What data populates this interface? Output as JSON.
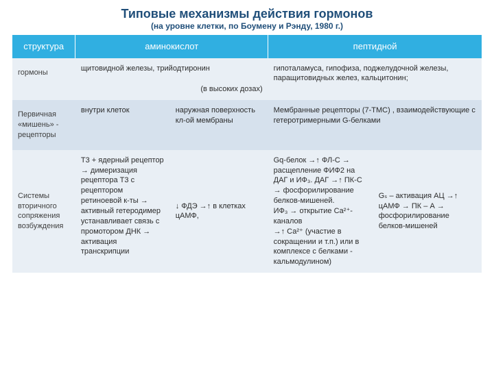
{
  "title": "Типовые механизмы действия гормонов",
  "subtitle": "(на уровне клетки, по Боумену и Рэнду, 1980 г.)",
  "header": {
    "c0": "структура",
    "c1": "аминокислот",
    "c2": "пептидной"
  },
  "row1": {
    "label": "гормоны",
    "c1": "щитовидной железы, трийодтиронин",
    "c2": "(в высоких дозах)",
    "c3": "гипоталамуса, гипофиза, поджелудочной железы, паращитовидных желез, кальцитонин;"
  },
  "row2": {
    "label": "Первичная «мишень» - рецепторы",
    "c1": "внутри клеток",
    "c2": "наружная поверхность кл-ой мембраны",
    "c3": "Мембранные рецепторы  (7-ТМС) , взаимодействующие с гетеротримерными  G-белками"
  },
  "row3": {
    "label": "Системы вторичного сопряжения возбуждения",
    "c1": "Т3 + ядерный рецептор\n→ димеризация рецептора Т3 с рецептором ретиноевой к-ты → активный гетеродимер устанавливает связь с промотором ДНК → активация транскрипции",
    "c2": "↓ ФДЭ →↑ в клетках цАМФ,",
    "c3": " Gq-белок →↑ ФЛ-С  → расщепление ФИФ2 на ДАГ и ИФ₃. ДАГ →↑ ПК-С → фосфорилирование белков-мишеней.\nИФ₃ → открытие  Са²⁺-каналов\n→↑ Са²⁺  (участие в сокращении и т.п.) или в комплексе с белками - кальмодулином)",
    "c4": "Gₛ – активация АЦ →↑ цАМФ →  ПК – А  → фосфорилирование белков-мишеней"
  },
  "colors": {
    "header_bg": "#30afe1",
    "stripe_a": "#e9eff5",
    "stripe_b": "#d6e1ed",
    "title": "#1f4e79"
  }
}
